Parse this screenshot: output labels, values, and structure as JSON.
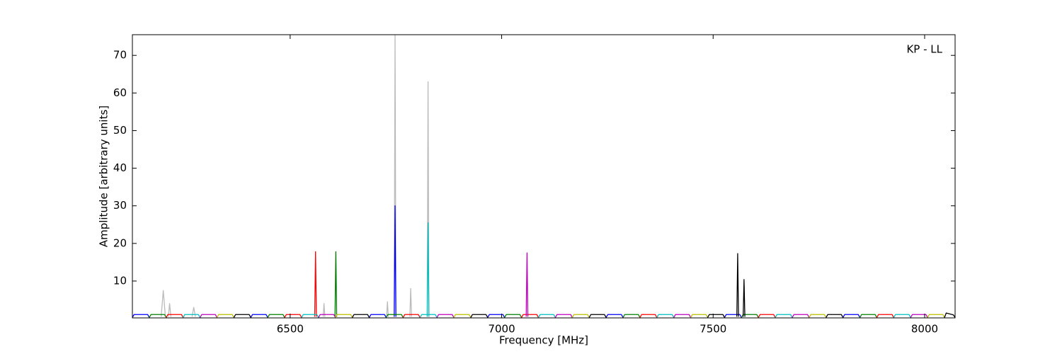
{
  "chart_data": {
    "type": "line",
    "xlabel": "Frequency [MHz]",
    "ylabel": "Amplitude [arbitrary units]",
    "annotation": "KP - LL",
    "xlim": [
      6127,
      8072
    ],
    "xticks": [
      6500,
      7000,
      7500,
      8000
    ],
    "ylim": [
      0.2,
      75.5
    ],
    "yticks": [
      10,
      20,
      30,
      40,
      50,
      60,
      70
    ],
    "grid": false,
    "series": [
      {
        "color": "#bbbbbb",
        "x": [
          6195,
          6200,
          6205,
          null,
          6212,
          6215,
          6218,
          null,
          6268,
          6272,
          6276,
          null,
          6578,
          6580,
          6582,
          null,
          6728,
          6730,
          6732,
          null,
          6746,
          6748,
          6750,
          null,
          6783,
          6785,
          6787,
          null,
          6824,
          6826,
          6828
        ],
        "values": [
          0.5,
          7.5,
          0.5,
          null,
          0.5,
          4,
          0.5,
          null,
          0.5,
          3,
          0.5,
          null,
          0.5,
          4,
          0.5,
          null,
          0.5,
          4.5,
          0.5,
          null,
          0.5,
          76,
          0.5,
          null,
          0.5,
          8,
          0.5,
          null,
          0.5,
          63,
          0.5
        ]
      },
      {
        "color": "#0000ff",
        "x": [
          6127,
          6131,
          6163,
          6167,
          null,
          6407,
          6411,
          6443,
          6447,
          null,
          6687,
          6691,
          6723,
          6727,
          null,
          6746,
          6748,
          6750,
          null,
          6967,
          6971,
          7003,
          7007,
          null,
          7247,
          7251,
          7283,
          7287,
          null,
          7527,
          7531,
          7563,
          7567,
          null,
          7807,
          7811,
          7843,
          7847
        ],
        "values": [
          0.3,
          1.1,
          1.1,
          0.3,
          null,
          0.3,
          1.1,
          1.1,
          0.3,
          null,
          0.3,
          1.1,
          1.1,
          0.3,
          null,
          0.5,
          30,
          0.5,
          null,
          0.3,
          1.1,
          1.1,
          0.3,
          null,
          0.3,
          1.1,
          1.1,
          0.3,
          null,
          0.3,
          1.1,
          1.1,
          0.3,
          null,
          0.3,
          1.1,
          1.1,
          0.3
        ]
      },
      {
        "color": "#008000",
        "x": [
          6167,
          6171,
          6203,
          6207,
          null,
          6447,
          6451,
          6483,
          6487,
          null,
          6606,
          6608,
          6610,
          null,
          6727,
          6731,
          6763,
          6767,
          null,
          7007,
          7011,
          7043,
          7047,
          null,
          7287,
          7291,
          7323,
          7327,
          null,
          7567,
          7571,
          7603,
          7607,
          null,
          7847,
          7851,
          7883,
          7887
        ],
        "values": [
          0.3,
          1.1,
          1.1,
          0.3,
          null,
          0.3,
          1.1,
          1.1,
          0.3,
          null,
          0.5,
          17.8,
          0.5,
          null,
          0.3,
          1.1,
          1.1,
          0.3,
          null,
          0.3,
          1.1,
          1.1,
          0.3,
          null,
          0.3,
          1.1,
          1.1,
          0.3,
          null,
          0.3,
          1.1,
          1.1,
          0.3,
          null,
          0.3,
          1.1,
          1.1,
          0.3
        ]
      },
      {
        "color": "#ff0000",
        "x": [
          6207,
          6211,
          6243,
          6247,
          null,
          6487,
          6491,
          6523,
          6527,
          null,
          6558,
          6560,
          6562,
          null,
          6767,
          6771,
          6803,
          6807,
          null,
          7047,
          7051,
          7083,
          7087,
          null,
          7327,
          7331,
          7363,
          7367,
          null,
          7607,
          7611,
          7643,
          7647,
          null,
          7887,
          7891,
          7923,
          7927
        ],
        "values": [
          0.3,
          1.1,
          1.1,
          0.3,
          null,
          0.3,
          1.1,
          1.1,
          0.3,
          null,
          0.5,
          17.8,
          0.5,
          null,
          0.3,
          1.1,
          1.1,
          0.3,
          null,
          0.3,
          1.1,
          1.1,
          0.3,
          null,
          0.3,
          1.1,
          1.1,
          0.3,
          null,
          0.3,
          1.1,
          1.1,
          0.3,
          null,
          0.3,
          1.1,
          1.1,
          0.3
        ]
      },
      {
        "color": "#00bfbf",
        "x": [
          6247,
          6251,
          6283,
          6287,
          null,
          6527,
          6531,
          6563,
          6567,
          null,
          6807,
          6811,
          6843,
          6847,
          null,
          6824,
          6826,
          6828,
          null,
          7087,
          7091,
          7123,
          7127,
          null,
          7367,
          7371,
          7403,
          7407,
          null,
          7647,
          7651,
          7683,
          7687,
          null,
          7927,
          7931,
          7963,
          7967
        ],
        "values": [
          0.3,
          1.1,
          1.1,
          0.3,
          null,
          0.3,
          1.1,
          1.1,
          0.3,
          null,
          0.3,
          1.1,
          1.1,
          0.3,
          null,
          0.5,
          25.5,
          0.5,
          null,
          0.3,
          1.1,
          1.1,
          0.3,
          null,
          0.3,
          1.1,
          1.1,
          0.3,
          null,
          0.3,
          1.1,
          1.1,
          0.3,
          null,
          0.3,
          1.1,
          1.1,
          0.3
        ]
      },
      {
        "color": "#bf00bf",
        "x": [
          6287,
          6291,
          6323,
          6327,
          null,
          6567,
          6571,
          6603,
          6607,
          null,
          6847,
          6851,
          6883,
          6887,
          null,
          7058,
          7060,
          7062,
          null,
          7127,
          7131,
          7163,
          7167,
          null,
          7407,
          7411,
          7443,
          7447,
          null,
          7687,
          7691,
          7723,
          7727,
          null,
          7967,
          7971,
          8003,
          8007
        ],
        "values": [
          0.3,
          1.1,
          1.1,
          0.3,
          null,
          0.3,
          1.1,
          1.1,
          0.3,
          null,
          0.3,
          1.1,
          1.1,
          0.3,
          null,
          0.5,
          17.5,
          0.5,
          null,
          0.3,
          1.1,
          1.1,
          0.3,
          null,
          0.3,
          1.1,
          1.1,
          0.3,
          null,
          0.3,
          1.1,
          1.1,
          0.3,
          null,
          0.3,
          1.1,
          1.1,
          0.3
        ]
      },
      {
        "color": "#bfbf00",
        "x": [
          6327,
          6331,
          6363,
          6367,
          null,
          6607,
          6611,
          6643,
          6647,
          null,
          6887,
          6891,
          6923,
          6927,
          null,
          7167,
          7171,
          7203,
          7207,
          null,
          7447,
          7451,
          7483,
          7487,
          null,
          7727,
          7731,
          7763,
          7767,
          null,
          8007,
          8011,
          8043,
          8047
        ],
        "values": [
          0.3,
          1.1,
          1.1,
          0.3,
          null,
          0.3,
          1.1,
          1.1,
          0.3,
          null,
          0.3,
          1.1,
          1.1,
          0.3,
          null,
          0.3,
          1.1,
          1.1,
          0.3,
          null,
          0.3,
          1.1,
          1.1,
          0.3,
          null,
          0.3,
          1.1,
          1.1,
          0.3,
          null,
          0.3,
          1.1,
          1.1,
          0.3
        ]
      },
      {
        "color": "#000000",
        "x": [
          6367,
          6371,
          6403,
          6407,
          null,
          6647,
          6651,
          6683,
          6687,
          null,
          6927,
          6931,
          6963,
          6967,
          null,
          7207,
          7211,
          7243,
          7247,
          null,
          7487,
          7491,
          7523,
          7527,
          null,
          7556,
          7558,
          7560,
          null,
          7571,
          7573,
          7575,
          null,
          7767,
          7771,
          7803,
          7807,
          null,
          8047,
          8051,
          8068,
          8072
        ],
        "values": [
          0.3,
          1.1,
          1.1,
          0.3,
          null,
          0.3,
          1.1,
          1.1,
          0.3,
          null,
          0.3,
          1.1,
          1.1,
          0.3,
          null,
          0.3,
          1.1,
          1.1,
          0.3,
          null,
          0.3,
          1.1,
          1.1,
          0.3,
          null,
          0.5,
          17.3,
          0.5,
          null,
          0.5,
          10.4,
          0.5,
          null,
          0.3,
          1.1,
          1.1,
          0.3,
          null,
          0.3,
          1.5,
          1.0,
          0.3
        ]
      }
    ]
  }
}
